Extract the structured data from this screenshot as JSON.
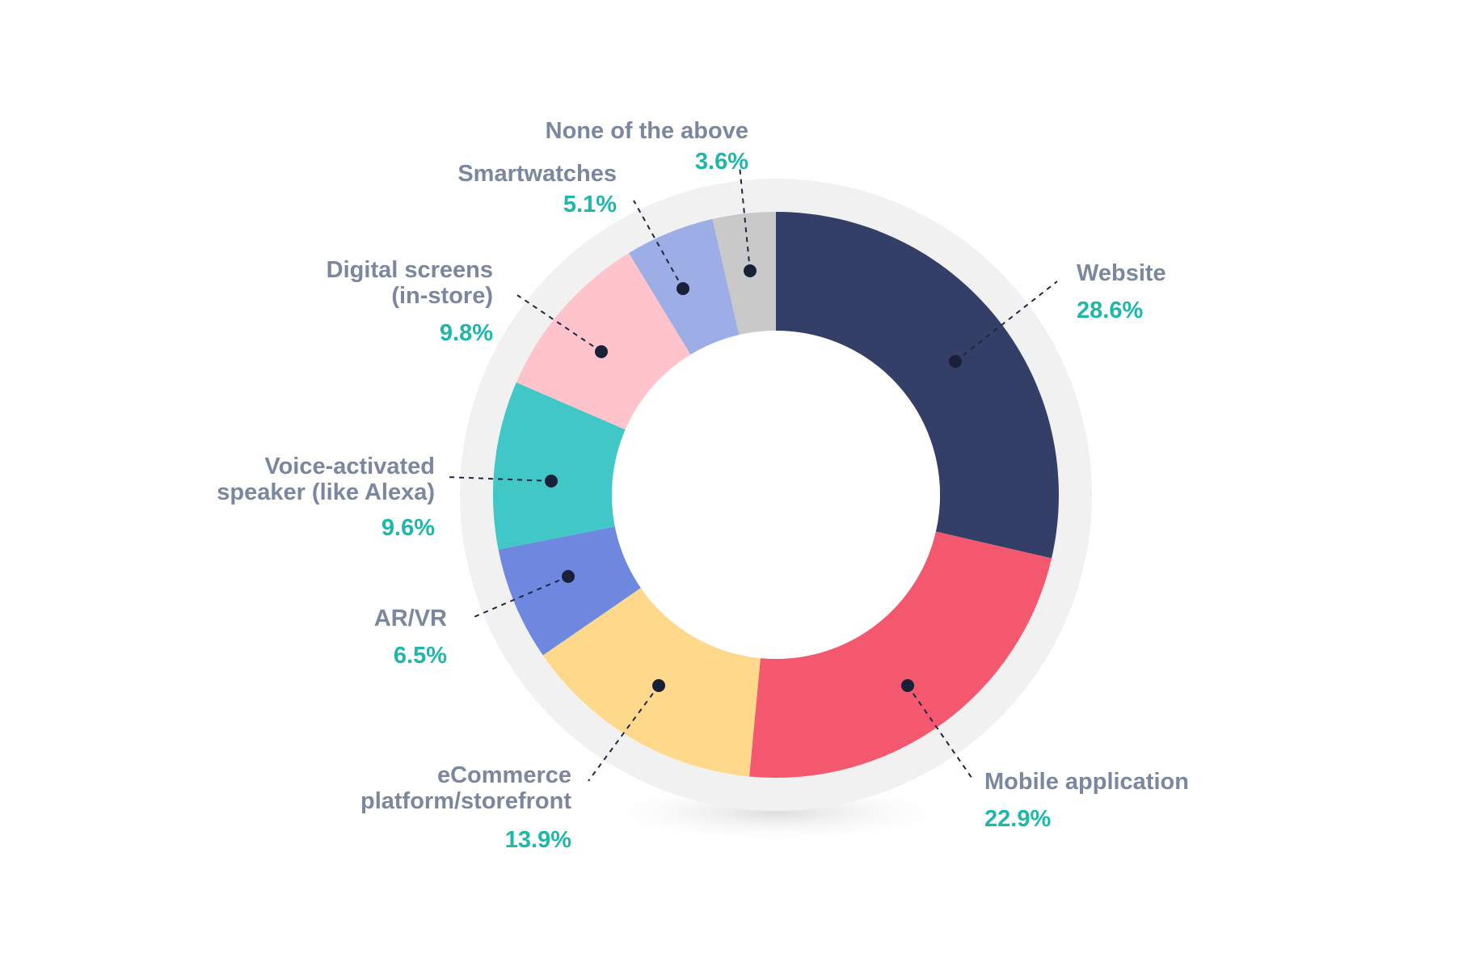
{
  "chart_data": {
    "type": "pie",
    "donut": true,
    "slices": [
      {
        "label": [
          "Website"
        ],
        "value": 28.6,
        "value_label": "28.6%",
        "color": "#343f68"
      },
      {
        "label": [
          "Mobile application"
        ],
        "value": 22.9,
        "value_label": "22.9%",
        "color": "#f4586e"
      },
      {
        "label": [
          "eCommerce",
          "platform/storefront"
        ],
        "value": 13.9,
        "value_label": "13.9%",
        "color": "#fed98b"
      },
      {
        "label": [
          "AR/VR"
        ],
        "value": 6.5,
        "value_label": "6.5%",
        "color": "#6d88de"
      },
      {
        "label": [
          "Voice-activated",
          "speaker (like Alexa)"
        ],
        "value": 9.6,
        "value_label": "9.6%",
        "color": "#41c7c6"
      },
      {
        "label": [
          "Digital screens",
          "(in-store)"
        ],
        "value": 9.8,
        "value_label": "9.8%",
        "color": "#fec3cb"
      },
      {
        "label": [
          "Smartwatches"
        ],
        "value": 5.1,
        "value_label": "5.1%",
        "color": "#9dade5"
      },
      {
        "label": [
          "None of the above"
        ],
        "value": 3.6,
        "value_label": "3.6%",
        "color": "#c9c9c9"
      }
    ]
  }
}
